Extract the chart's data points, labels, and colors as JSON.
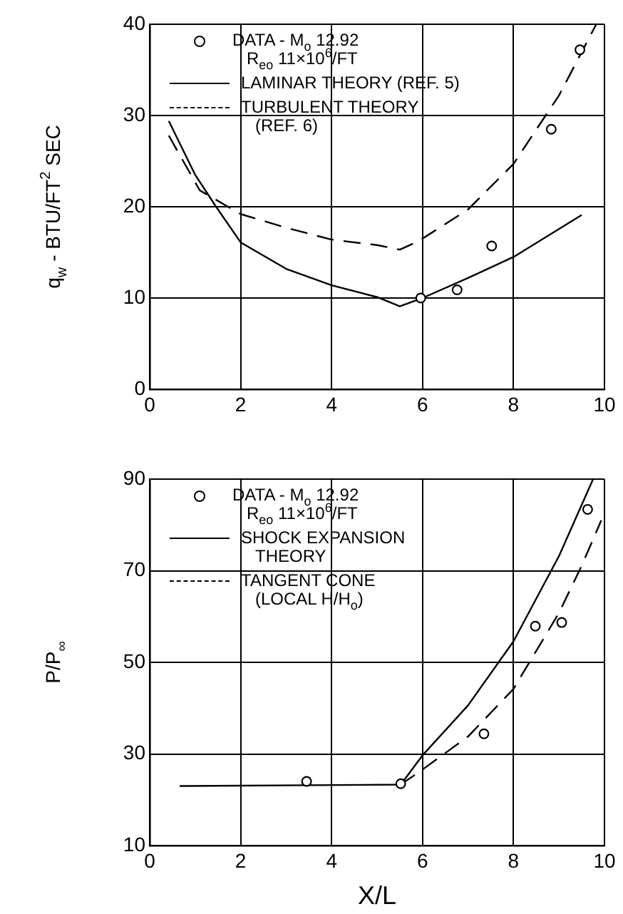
{
  "chart_data": [
    {
      "type": "line",
      "ylabel": "q$_{w}$ - BTU/FT$^{2}$ SEC",
      "xlim": [
        0,
        10
      ],
      "xticks": [
        0,
        2,
        4,
        6,
        8,
        10
      ],
      "ylim": [
        0,
        40
      ],
      "yticks": [
        0,
        10,
        20,
        30,
        40
      ],
      "grid": true,
      "legend": "top",
      "series": [
        {
          "type": "scatter",
          "marker": "circle",
          "name": "DATA - M$_{o}$ 12.92\nR$_{eo}$ 11×10$^{6}$/FT",
          "color": "#000000",
          "x": [
            5.96,
            6.76,
            7.52,
            8.83,
            9.46
          ],
          "values": [
            10.0,
            10.9,
            15.7,
            28.5,
            37.2
          ]
        },
        {
          "name": "LAMINAR THEORY (REF. 5)",
          "color": "#000000",
          "line_style": "solid",
          "x": [
            0.42,
            1.0,
            1.46,
            2,
            3,
            4,
            5,
            5.5,
            6,
            7,
            8,
            9.5
          ],
          "values": [
            29.4,
            23.5,
            20,
            16.1,
            13.2,
            11.4,
            10.1,
            9.1,
            10.0,
            12.2,
            14.5,
            19.1
          ]
        },
        {
          "name": "TURBULENT THEORY\n(REF. 6)",
          "color": "#000000",
          "line_style": "dashed",
          "x": [
            0.42,
            1.1,
            2,
            3,
            4,
            5,
            5.5,
            5.9,
            7,
            8,
            9,
            9.82
          ],
          "values": [
            27.8,
            21.8,
            19.2,
            17.7,
            16.4,
            15.8,
            15.3,
            16.2,
            19.7,
            24.7,
            32.2,
            40
          ]
        }
      ]
    },
    {
      "type": "line",
      "xlabel": "X/L",
      "ylabel": "P/P$_{∞}$",
      "xlim": [
        0,
        10
      ],
      "xticks": [
        0,
        2,
        4,
        6,
        8,
        10
      ],
      "ylim": [
        10,
        90
      ],
      "yticks": [
        10,
        30,
        50,
        70,
        90
      ],
      "grid": true,
      "legend": "top",
      "series": [
        {
          "type": "scatter",
          "marker": "circle",
          "name": "DATA - M$_{o}$ 12.92\nR$_{eo}$ 11×10$^{6}$/FT",
          "color": "#000000",
          "x": [
            3.45,
            5.52,
            7.35,
            8.48,
            9.06,
            9.63
          ],
          "values": [
            24.0,
            23.5,
            34.4,
            57.9,
            58.7,
            83.4
          ]
        },
        {
          "name": "SHOCK EXPANSION\nTHEORY",
          "color": "#000000",
          "line_style": "solid",
          "x": [
            0.66,
            5.52,
            6,
            7,
            8,
            9,
            9.75
          ],
          "values": [
            23.0,
            23.3,
            29.7,
            40.6,
            54.6,
            73.2,
            90
          ]
        },
        {
          "name": "TANGENT CONE\n(LOCAL H/H$_{o}$)",
          "color": "#000000",
          "line_style": "dashed",
          "x": [
            5.52,
            6,
            7,
            8,
            9,
            9.5,
            9.93
          ],
          "values": [
            23.3,
            26.6,
            33.8,
            44.2,
            60.8,
            71.1,
            81
          ]
        }
      ]
    }
  ]
}
